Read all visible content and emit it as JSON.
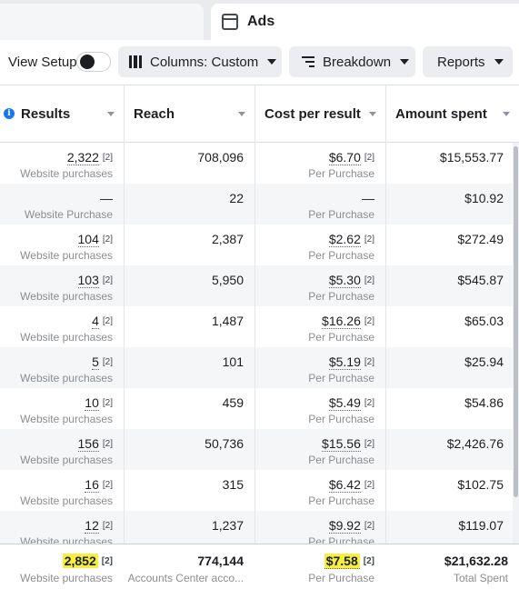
{
  "tabs": {
    "active_label": "Ads"
  },
  "toolbar": {
    "view_setup_label": "View Setup",
    "columns_label": "Columns: Custom",
    "breakdown_label": "Breakdown",
    "reports_label": "Reports"
  },
  "columns": [
    "Results",
    "Reach",
    "Cost per result",
    "Amount spent"
  ],
  "footnote_marker": "[2]",
  "rows": [
    {
      "results": "2,322",
      "results_sub": "Website purchases",
      "reach": "708,096",
      "cost": "$6.70",
      "cost_sub": "Per Purchase",
      "spent": "$15,553.77"
    },
    {
      "results": "—",
      "results_sub": "Website Purchase",
      "reach": "22",
      "cost": "—",
      "cost_sub": "Per Purchase",
      "spent": "$10.92"
    },
    {
      "results": "104",
      "results_sub": "Website purchases",
      "reach": "2,387",
      "cost": "$2.62",
      "cost_sub": "Per Purchase",
      "spent": "$272.49"
    },
    {
      "results": "103",
      "results_sub": "Website purchases",
      "reach": "5,950",
      "cost": "$5.30",
      "cost_sub": "Per Purchase",
      "spent": "$545.87"
    },
    {
      "results": "4",
      "results_sub": "Website purchases",
      "reach": "1,487",
      "cost": "$16.26",
      "cost_sub": "Per Purchase",
      "spent": "$65.03"
    },
    {
      "results": "5",
      "results_sub": "Website purchases",
      "reach": "101",
      "cost": "$5.19",
      "cost_sub": "Per Purchase",
      "spent": "$25.94"
    },
    {
      "results": "10",
      "results_sub": "Website purchases",
      "reach": "459",
      "cost": "$5.49",
      "cost_sub": "Per Purchase",
      "spent": "$54.86"
    },
    {
      "results": "156",
      "results_sub": "Website purchases",
      "reach": "50,736",
      "cost": "$15.56",
      "cost_sub": "Per Purchase",
      "spent": "$2,426.76"
    },
    {
      "results": "16",
      "results_sub": "Website purchases",
      "reach": "315",
      "cost": "$6.42",
      "cost_sub": "Per Purchase",
      "spent": "$102.75"
    },
    {
      "results": "12",
      "results_sub": "Website purchases",
      "reach": "1,237",
      "cost": "$9.92",
      "cost_sub": "Per Purchase",
      "spent": "$119.07"
    }
  ],
  "totals": {
    "results": "2,852",
    "results_sub": "Website purchases",
    "reach": "774,144",
    "reach_sub": "Accounts Center acco...",
    "cost": "$7.58",
    "cost_sub": "Per Purchase",
    "spent": "$21,632.28",
    "spent_sub": "Total Spent"
  },
  "colors": {
    "highlight": "#f7ef3b",
    "info": "#1877f2"
  }
}
